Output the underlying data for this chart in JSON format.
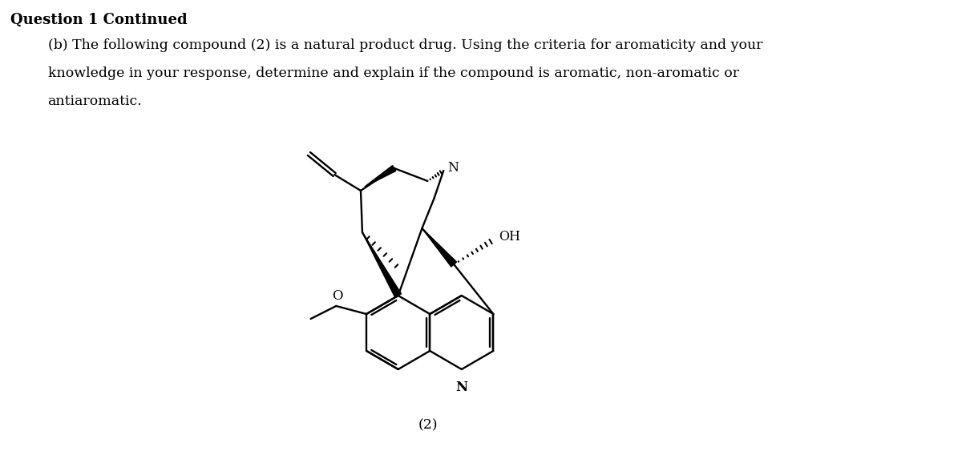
{
  "title_bold": "Question 1 Continued",
  "text_line1": "(b) The following compound (2) is a natural product drug. Using the criteria for aromaticity and your",
  "text_line2": "knowledge in your response, determine and explain if the compound is aromatic, non-aromatic or",
  "text_line3": "antiaromatic.",
  "label_2": "(2)",
  "bg_color": "#ffffff",
  "text_color": "#000000",
  "figsize": [
    12.0,
    5.63
  ],
  "dpi": 100
}
